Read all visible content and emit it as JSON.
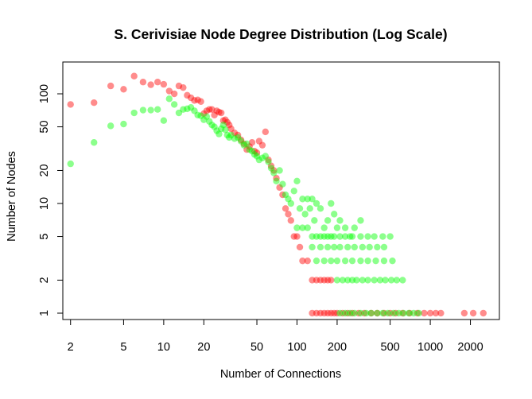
{
  "chart_data": {
    "type": "scatter",
    "title": "S. Cerivisiae Node Degree Distribution (Log Scale)",
    "xlabel": "Number of Connections",
    "ylabel": "Number of Nodes",
    "x_scale": "log",
    "y_scale": "log",
    "xlim": [
      1.75,
      3300
    ],
    "ylim": [
      0.875,
      195
    ],
    "grid": false,
    "x_ticks": [
      2,
      5,
      10,
      20,
      50,
      100,
      200,
      500,
      1000,
      2000
    ],
    "x_tick_labels": [
      "2",
      "5",
      "10",
      "20",
      "50",
      "100",
      "200",
      "500",
      "1000",
      "2000"
    ],
    "y_ticks": [
      1,
      2,
      5,
      10,
      20,
      50,
      100
    ],
    "y_tick_labels": [
      "1",
      "2",
      "5",
      "10",
      "20",
      "50",
      "100"
    ],
    "series": [
      {
        "color": "#ff0000",
        "points": [
          [
            2,
            80
          ],
          [
            3,
            83
          ],
          [
            4,
            118
          ],
          [
            5,
            110
          ],
          [
            6,
            145
          ],
          [
            7,
            128
          ],
          [
            8,
            121
          ],
          [
            9,
            128
          ],
          [
            10,
            122
          ],
          [
            11,
            106
          ],
          [
            12,
            100
          ],
          [
            13,
            118
          ],
          [
            14,
            114
          ],
          [
            15,
            97
          ],
          [
            16,
            92
          ],
          [
            17,
            87
          ],
          [
            18,
            88
          ],
          [
            19,
            85
          ],
          [
            20,
            66
          ],
          [
            21,
            70
          ],
          [
            22,
            72
          ],
          [
            23,
            72
          ],
          [
            24,
            64
          ],
          [
            25,
            70
          ],
          [
            26,
            68
          ],
          [
            27,
            67
          ],
          [
            28,
            57
          ],
          [
            29,
            58
          ],
          [
            30,
            55
          ],
          [
            31,
            52
          ],
          [
            32,
            48
          ],
          [
            34,
            44
          ],
          [
            36,
            42
          ],
          [
            38,
            38
          ],
          [
            40,
            35
          ],
          [
            42,
            31
          ],
          [
            44,
            33
          ],
          [
            46,
            36
          ],
          [
            48,
            30
          ],
          [
            50,
            29
          ],
          [
            52,
            37
          ],
          [
            55,
            34
          ],
          [
            58,
            45
          ],
          [
            61,
            25
          ],
          [
            64,
            22
          ],
          [
            67,
            20
          ],
          [
            70,
            17
          ],
          [
            74,
            14
          ],
          [
            78,
            12
          ],
          [
            82,
            9
          ],
          [
            86,
            8
          ],
          [
            90,
            7
          ],
          [
            95,
            5
          ],
          [
            100,
            5
          ],
          [
            105,
            4
          ],
          [
            110,
            3
          ],
          [
            120,
            3
          ],
          [
            130,
            2
          ],
          [
            140,
            2
          ],
          [
            150,
            2
          ],
          [
            160,
            2
          ],
          [
            170,
            2
          ],
          [
            180,
            2
          ],
          [
            130,
            1
          ],
          [
            140,
            1
          ],
          [
            150,
            1
          ],
          [
            160,
            1
          ],
          [
            170,
            1
          ],
          [
            180,
            1
          ],
          [
            190,
            1
          ],
          [
            200,
            1
          ],
          [
            220,
            1
          ],
          [
            240,
            1
          ],
          [
            260,
            1
          ],
          [
            290,
            1
          ],
          [
            320,
            1
          ],
          [
            360,
            1
          ],
          [
            400,
            1
          ],
          [
            450,
            1
          ],
          [
            500,
            1
          ],
          [
            550,
            1
          ],
          [
            620,
            1
          ],
          [
            700,
            1
          ],
          [
            800,
            1
          ],
          [
            900,
            1
          ],
          [
            1000,
            1
          ],
          [
            1100,
            1
          ],
          [
            1200,
            1
          ],
          [
            1800,
            1
          ],
          [
            2100,
            1
          ],
          [
            2500,
            1
          ]
        ]
      },
      {
        "color": "#00ff00",
        "points": [
          [
            2,
            23
          ],
          [
            3,
            36
          ],
          [
            4,
            51
          ],
          [
            5,
            53
          ],
          [
            6,
            67
          ],
          [
            7,
            71
          ],
          [
            8,
            71
          ],
          [
            9,
            72
          ],
          [
            10,
            57
          ],
          [
            11,
            90
          ],
          [
            12,
            80
          ],
          [
            13,
            67
          ],
          [
            14,
            72
          ],
          [
            15,
            73
          ],
          [
            16,
            75
          ],
          [
            17,
            70
          ],
          [
            18,
            64
          ],
          [
            19,
            63
          ],
          [
            20,
            58
          ],
          [
            21,
            62
          ],
          [
            22,
            56
          ],
          [
            23,
            52
          ],
          [
            24,
            50
          ],
          [
            25,
            46
          ],
          [
            26,
            43
          ],
          [
            27,
            48
          ],
          [
            28,
            52
          ],
          [
            29,
            47
          ],
          [
            30,
            42
          ],
          [
            31,
            40
          ],
          [
            32,
            42
          ],
          [
            34,
            39
          ],
          [
            36,
            40
          ],
          [
            38,
            37
          ],
          [
            40,
            34
          ],
          [
            42,
            35
          ],
          [
            44,
            31
          ],
          [
            46,
            30
          ],
          [
            48,
            28
          ],
          [
            50,
            27
          ],
          [
            52,
            25
          ],
          [
            55,
            26
          ],
          [
            58,
            27
          ],
          [
            61,
            24
          ],
          [
            64,
            21
          ],
          [
            67,
            19
          ],
          [
            70,
            16
          ],
          [
            74,
            20
          ],
          [
            78,
            15
          ],
          [
            82,
            12
          ],
          [
            86,
            11
          ],
          [
            90,
            10
          ],
          [
            95,
            13
          ],
          [
            100,
            16
          ],
          [
            105,
            9
          ],
          [
            110,
            11
          ],
          [
            115,
            8
          ],
          [
            120,
            11
          ],
          [
            125,
            9
          ],
          [
            130,
            11
          ],
          [
            135,
            7
          ],
          [
            140,
            10
          ],
          [
            150,
            9
          ],
          [
            160,
            6
          ],
          [
            170,
            7
          ],
          [
            180,
            10
          ],
          [
            190,
            8
          ],
          [
            200,
            6
          ],
          [
            210,
            7
          ],
          [
            230,
            6
          ],
          [
            250,
            5
          ],
          [
            270,
            6
          ],
          [
            300,
            7
          ],
          [
            100,
            6
          ],
          [
            110,
            6
          ],
          [
            120,
            6
          ],
          [
            130,
            5
          ],
          [
            140,
            5
          ],
          [
            150,
            5
          ],
          [
            160,
            5
          ],
          [
            170,
            5
          ],
          [
            180,
            5
          ],
          [
            190,
            5
          ],
          [
            210,
            5
          ],
          [
            230,
            5
          ],
          [
            260,
            5
          ],
          [
            300,
            5
          ],
          [
            340,
            5
          ],
          [
            380,
            5
          ],
          [
            440,
            5
          ],
          [
            500,
            5
          ],
          [
            130,
            4
          ],
          [
            150,
            4
          ],
          [
            170,
            4
          ],
          [
            190,
            4
          ],
          [
            210,
            4
          ],
          [
            240,
            4
          ],
          [
            270,
            4
          ],
          [
            310,
            4
          ],
          [
            350,
            4
          ],
          [
            400,
            4
          ],
          [
            450,
            4
          ],
          [
            140,
            3
          ],
          [
            160,
            3
          ],
          [
            180,
            3
          ],
          [
            200,
            3
          ],
          [
            230,
            3
          ],
          [
            260,
            3
          ],
          [
            300,
            3
          ],
          [
            340,
            3
          ],
          [
            390,
            3
          ],
          [
            450,
            3
          ],
          [
            520,
            3
          ],
          [
            200,
            2
          ],
          [
            220,
            2
          ],
          [
            240,
            2
          ],
          [
            260,
            2
          ],
          [
            280,
            2
          ],
          [
            310,
            2
          ],
          [
            340,
            2
          ],
          [
            380,
            2
          ],
          [
            420,
            2
          ],
          [
            460,
            2
          ],
          [
            510,
            2
          ],
          [
            560,
            2
          ],
          [
            620,
            2
          ],
          [
            210,
            1
          ],
          [
            230,
            1
          ],
          [
            250,
            1
          ],
          [
            270,
            1
          ],
          [
            300,
            1
          ],
          [
            330,
            1
          ],
          [
            360,
            1
          ],
          [
            400,
            1
          ],
          [
            440,
            1
          ],
          [
            480,
            1
          ],
          [
            530,
            1
          ],
          [
            580,
            1
          ],
          [
            630,
            1
          ],
          [
            690,
            1
          ],
          [
            750,
            1
          ],
          [
            820,
            1
          ]
        ]
      }
    ]
  }
}
